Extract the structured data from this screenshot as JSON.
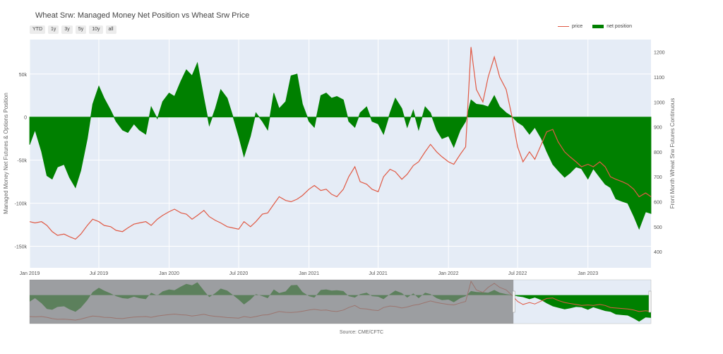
{
  "title": "Wheat Srw: Managed Money Net Position vs Wheat Srw Price",
  "range_buttons": [
    "YTD",
    "1y",
    "3y",
    "5y",
    "10y",
    "all"
  ],
  "legend": {
    "price": "price",
    "net_position": "net position"
  },
  "source": "Source: CME/CFTC",
  "colors": {
    "price": "#e05a45",
    "net_position": "#008000",
    "plot_bg": "#e5ecf6",
    "range_shade": "#7f7f7f"
  },
  "chart_data": {
    "type": "area",
    "title": "Wheat Srw: Managed Money Net Position vs Wheat Srw Price",
    "x_range": [
      "2019-01-01",
      "2023-06-15"
    ],
    "x_ticks": [
      "2019-01-01",
      "2019-07-01",
      "2020-01-01",
      "2020-07-01",
      "2021-01-01",
      "2021-07-01",
      "2022-01-01",
      "2022-07-01",
      "2023-01-01"
    ],
    "x_tick_labels": [
      "Jan 2019",
      "Jul 2019",
      "Jan 2020",
      "Jul 2020",
      "Jan 2021",
      "Jul 2021",
      "Jan 2022",
      "Jul 2022",
      "Jan 2023"
    ],
    "y_left": {
      "label": "Managed Money Net Futures & Options Position",
      "range": [
        -175000,
        90000
      ],
      "ticks": [
        50000,
        0,
        -50000,
        -100000,
        -150000
      ],
      "tick_labels": [
        "50k",
        "0",
        "-50k",
        "-100k",
        "-150k"
      ]
    },
    "y_right": {
      "label": "Front Month Wheat Srw Futures Continuous",
      "range": [
        335,
        1250
      ],
      "ticks": [
        400,
        500,
        600,
        700,
        800,
        900,
        1000,
        1100,
        1200
      ],
      "tick_labels": [
        "400",
        "500",
        "600",
        "700",
        "800",
        "900",
        "1000",
        "1100",
        "1200"
      ]
    },
    "range_slider": {
      "selected_start": "2022-06-20",
      "selected_end": "2023-06-15"
    },
    "series": [
      {
        "name": "net position",
        "axis": "left",
        "points": [
          [
            "2019-01-01",
            -32000
          ],
          [
            "2019-01-15",
            -15000
          ],
          [
            "2019-02-01",
            -40000
          ],
          [
            "2019-02-15",
            -68000
          ],
          [
            "2019-03-01",
            -72000
          ],
          [
            "2019-03-15",
            -58000
          ],
          [
            "2019-04-01",
            -55000
          ],
          [
            "2019-04-15",
            -70000
          ],
          [
            "2019-05-01",
            -82000
          ],
          [
            "2019-05-15",
            -62000
          ],
          [
            "2019-06-01",
            -25000
          ],
          [
            "2019-06-15",
            15000
          ],
          [
            "2019-07-01",
            36000
          ],
          [
            "2019-07-15",
            22000
          ],
          [
            "2019-08-01",
            8000
          ],
          [
            "2019-08-15",
            -5000
          ],
          [
            "2019-09-01",
            -15000
          ],
          [
            "2019-09-15",
            -18000
          ],
          [
            "2019-10-01",
            -8000
          ],
          [
            "2019-10-15",
            -15000
          ],
          [
            "2019-11-01",
            -20000
          ],
          [
            "2019-11-15",
            12000
          ],
          [
            "2019-12-01",
            -2000
          ],
          [
            "2019-12-15",
            18000
          ],
          [
            "2020-01-01",
            28000
          ],
          [
            "2020-01-15",
            24000
          ],
          [
            "2020-02-01",
            42000
          ],
          [
            "2020-02-15",
            55000
          ],
          [
            "2020-03-01",
            48000
          ],
          [
            "2020-03-15",
            63000
          ],
          [
            "2020-04-01",
            22000
          ],
          [
            "2020-04-15",
            -10000
          ],
          [
            "2020-05-01",
            10000
          ],
          [
            "2020-05-15",
            32000
          ],
          [
            "2020-06-01",
            22000
          ],
          [
            "2020-06-15",
            2000
          ],
          [
            "2020-07-01",
            -22000
          ],
          [
            "2020-07-15",
            -46000
          ],
          [
            "2020-08-01",
            -22000
          ],
          [
            "2020-08-15",
            5000
          ],
          [
            "2020-09-01",
            -5000
          ],
          [
            "2020-09-15",
            -15000
          ],
          [
            "2020-10-01",
            28000
          ],
          [
            "2020-10-15",
            10000
          ],
          [
            "2020-11-01",
            18000
          ],
          [
            "2020-11-15",
            48000
          ],
          [
            "2020-12-01",
            50000
          ],
          [
            "2020-12-15",
            15000
          ],
          [
            "2021-01-01",
            -5000
          ],
          [
            "2021-01-15",
            -12000
          ],
          [
            "2021-02-01",
            25000
          ],
          [
            "2021-02-15",
            28000
          ],
          [
            "2021-03-01",
            22000
          ],
          [
            "2021-03-15",
            24000
          ],
          [
            "2021-04-01",
            20000
          ],
          [
            "2021-04-15",
            -5000
          ],
          [
            "2021-05-01",
            -12000
          ],
          [
            "2021-05-15",
            5000
          ],
          [
            "2021-06-01",
            12000
          ],
          [
            "2021-06-15",
            -5000
          ],
          [
            "2021-07-01",
            -8000
          ],
          [
            "2021-07-15",
            -20000
          ],
          [
            "2021-08-01",
            5000
          ],
          [
            "2021-08-15",
            22000
          ],
          [
            "2021-09-01",
            10000
          ],
          [
            "2021-09-15",
            -12000
          ],
          [
            "2021-10-01",
            8000
          ],
          [
            "2021-10-15",
            -15000
          ],
          [
            "2021-11-01",
            12000
          ],
          [
            "2021-11-15",
            5000
          ],
          [
            "2021-12-01",
            -15000
          ],
          [
            "2021-12-15",
            -25000
          ],
          [
            "2022-01-01",
            -22000
          ],
          [
            "2022-01-15",
            -35000
          ],
          [
            "2022-02-01",
            -15000
          ],
          [
            "2022-02-15",
            -5000
          ],
          [
            "2022-03-01",
            20000
          ],
          [
            "2022-03-15",
            15000
          ],
          [
            "2022-04-01",
            14000
          ],
          [
            "2022-04-15",
            12000
          ],
          [
            "2022-05-01",
            25000
          ],
          [
            "2022-05-15",
            12000
          ],
          [
            "2022-06-01",
            5000
          ],
          [
            "2022-06-15",
            1000
          ],
          [
            "2022-07-01",
            -6000
          ],
          [
            "2022-07-15",
            -10000
          ],
          [
            "2022-08-01",
            -20000
          ],
          [
            "2022-08-15",
            -12000
          ],
          [
            "2022-09-01",
            -25000
          ],
          [
            "2022-09-15",
            -40000
          ],
          [
            "2022-10-01",
            -55000
          ],
          [
            "2022-10-15",
            -62000
          ],
          [
            "2022-11-01",
            -70000
          ],
          [
            "2022-11-15",
            -65000
          ],
          [
            "2022-12-01",
            -58000
          ],
          [
            "2022-12-15",
            -60000
          ],
          [
            "2023-01-01",
            -72000
          ],
          [
            "2023-01-15",
            -60000
          ],
          [
            "2023-02-01",
            -70000
          ],
          [
            "2023-02-15",
            -78000
          ],
          [
            "2023-03-01",
            -82000
          ],
          [
            "2023-03-15",
            -95000
          ],
          [
            "2023-04-01",
            -98000
          ],
          [
            "2023-04-15",
            -100000
          ],
          [
            "2023-05-01",
            -115000
          ],
          [
            "2023-05-15",
            -130000
          ],
          [
            "2023-06-01",
            -110000
          ],
          [
            "2023-06-15",
            -112000
          ]
        ]
      },
      {
        "name": "price",
        "axis": "right",
        "points": [
          [
            "2019-01-01",
            520
          ],
          [
            "2019-01-15",
            515
          ],
          [
            "2019-02-01",
            520
          ],
          [
            "2019-02-15",
            505
          ],
          [
            "2019-03-01",
            480
          ],
          [
            "2019-03-15",
            465
          ],
          [
            "2019-04-01",
            470
          ],
          [
            "2019-04-15",
            460
          ],
          [
            "2019-05-01",
            450
          ],
          [
            "2019-05-15",
            470
          ],
          [
            "2019-06-01",
            505
          ],
          [
            "2019-06-15",
            530
          ],
          [
            "2019-07-01",
            520
          ],
          [
            "2019-07-15",
            505
          ],
          [
            "2019-08-01",
            500
          ],
          [
            "2019-08-15",
            485
          ],
          [
            "2019-09-01",
            480
          ],
          [
            "2019-09-15",
            495
          ],
          [
            "2019-10-01",
            510
          ],
          [
            "2019-10-15",
            515
          ],
          [
            "2019-11-01",
            520
          ],
          [
            "2019-11-15",
            505
          ],
          [
            "2019-12-01",
            530
          ],
          [
            "2019-12-15",
            545
          ],
          [
            "2020-01-01",
            560
          ],
          [
            "2020-01-15",
            570
          ],
          [
            "2020-02-01",
            555
          ],
          [
            "2020-02-15",
            550
          ],
          [
            "2020-03-01",
            530
          ],
          [
            "2020-03-15",
            545
          ],
          [
            "2020-04-01",
            565
          ],
          [
            "2020-04-15",
            540
          ],
          [
            "2020-05-01",
            525
          ],
          [
            "2020-05-15",
            515
          ],
          [
            "2020-06-01",
            500
          ],
          [
            "2020-06-15",
            495
          ],
          [
            "2020-07-01",
            490
          ],
          [
            "2020-07-15",
            520
          ],
          [
            "2020-08-01",
            500
          ],
          [
            "2020-08-15",
            520
          ],
          [
            "2020-09-01",
            550
          ],
          [
            "2020-09-15",
            555
          ],
          [
            "2020-10-01",
            590
          ],
          [
            "2020-10-15",
            620
          ],
          [
            "2020-11-01",
            605
          ],
          [
            "2020-11-15",
            600
          ],
          [
            "2020-12-01",
            610
          ],
          [
            "2020-12-15",
            625
          ],
          [
            "2021-01-01",
            650
          ],
          [
            "2021-01-15",
            665
          ],
          [
            "2021-02-01",
            645
          ],
          [
            "2021-02-15",
            650
          ],
          [
            "2021-03-01",
            630
          ],
          [
            "2021-03-15",
            620
          ],
          [
            "2021-04-01",
            650
          ],
          [
            "2021-04-15",
            700
          ],
          [
            "2021-05-01",
            740
          ],
          [
            "2021-05-15",
            680
          ],
          [
            "2021-06-01",
            670
          ],
          [
            "2021-06-15",
            650
          ],
          [
            "2021-07-01",
            640
          ],
          [
            "2021-07-15",
            700
          ],
          [
            "2021-08-01",
            730
          ],
          [
            "2021-08-15",
            720
          ],
          [
            "2021-09-01",
            690
          ],
          [
            "2021-09-15",
            710
          ],
          [
            "2021-10-01",
            745
          ],
          [
            "2021-10-15",
            760
          ],
          [
            "2021-11-01",
            800
          ],
          [
            "2021-11-15",
            830
          ],
          [
            "2021-12-01",
            800
          ],
          [
            "2021-12-15",
            780
          ],
          [
            "2022-01-01",
            760
          ],
          [
            "2022-01-15",
            750
          ],
          [
            "2022-02-01",
            790
          ],
          [
            "2022-02-15",
            820
          ],
          [
            "2022-03-01",
            1220
          ],
          [
            "2022-03-15",
            1050
          ],
          [
            "2022-04-01",
            1000
          ],
          [
            "2022-04-15",
            1100
          ],
          [
            "2022-05-01",
            1180
          ],
          [
            "2022-05-15",
            1100
          ],
          [
            "2022-06-01",
            1050
          ],
          [
            "2022-06-15",
            950
          ],
          [
            "2022-07-01",
            820
          ],
          [
            "2022-07-15",
            760
          ],
          [
            "2022-08-01",
            800
          ],
          [
            "2022-08-15",
            770
          ],
          [
            "2022-09-01",
            830
          ],
          [
            "2022-09-15",
            880
          ],
          [
            "2022-10-01",
            890
          ],
          [
            "2022-10-15",
            840
          ],
          [
            "2022-11-01",
            800
          ],
          [
            "2022-11-15",
            780
          ],
          [
            "2022-12-01",
            760
          ],
          [
            "2022-12-15",
            740
          ],
          [
            "2023-01-01",
            750
          ],
          [
            "2023-01-15",
            740
          ],
          [
            "2023-02-01",
            760
          ],
          [
            "2023-02-15",
            740
          ],
          [
            "2023-03-01",
            700
          ],
          [
            "2023-03-15",
            690
          ],
          [
            "2023-04-01",
            680
          ],
          [
            "2023-04-15",
            670
          ],
          [
            "2023-05-01",
            650
          ],
          [
            "2023-05-15",
            620
          ],
          [
            "2023-06-01",
            635
          ],
          [
            "2023-06-15",
            620
          ]
        ]
      }
    ]
  }
}
